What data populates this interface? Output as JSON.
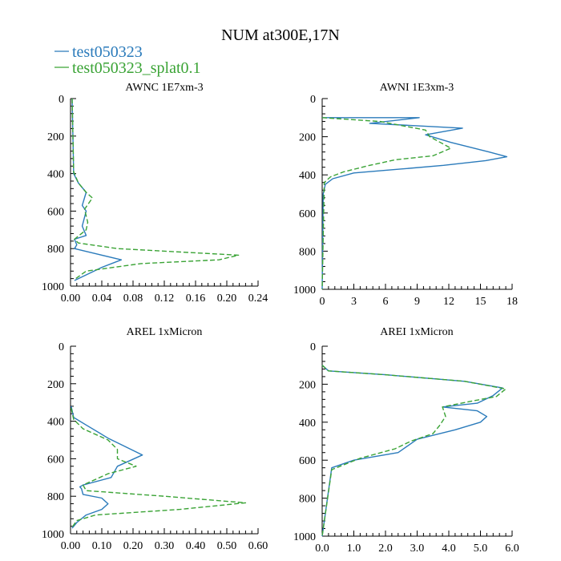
{
  "figure_title": "NUM at300E,17N",
  "colors": {
    "series1": "#2b7bbb",
    "series2": "#3aa335",
    "axis": "#000000"
  },
  "legend": [
    {
      "label": "test050323",
      "color": "#2b7bbb",
      "dash": "solid"
    },
    {
      "label": "test050323_splat0.1",
      "color": "#3aa335",
      "dash": "dashed"
    }
  ],
  "chart_data": [
    {
      "type": "line",
      "title": "AWNC  1E7xm-3",
      "xlim": [
        0,
        0.24
      ],
      "ylim": [
        1000,
        0
      ],
      "xticks": [
        "0.00",
        "0.04",
        "0.08",
        "0.12",
        "0.16",
        "0.20",
        "0.24"
      ],
      "xtick_values": [
        0,
        0.04,
        0.08,
        0.12,
        0.16,
        0.2,
        0.24
      ],
      "yticks": [
        "0",
        "200",
        "400",
        "600",
        "800",
        "1000"
      ],
      "ytick_values": [
        0,
        200,
        400,
        600,
        800,
        1000
      ],
      "series": [
        {
          "name": "test050323",
          "x": [
            0.002,
            0.004,
            0.01,
            0.02,
            0.015,
            0.02,
            0.015,
            0.02,
            0.005,
            0.008,
            0.005,
            0.035,
            0.065,
            0.04,
            0.02,
            0.005
          ],
          "y": [
            0,
            400,
            450,
            500,
            570,
            600,
            680,
            730,
            750,
            780,
            800,
            830,
            860,
            900,
            940,
            970
          ]
        },
        {
          "name": "test050323_splat0.1",
          "x": [
            0.002,
            0.004,
            0.01,
            0.02,
            0.028,
            0.018,
            0.022,
            0.02,
            0.005,
            0.01,
            0.06,
            0.215,
            0.19,
            0.09,
            0.02,
            0.005
          ],
          "y": [
            0,
            390,
            450,
            500,
            530,
            590,
            660,
            700,
            750,
            770,
            800,
            835,
            860,
            880,
            920,
            965
          ]
        }
      ]
    },
    {
      "type": "line",
      "title": "AWNI  1E3xm-3",
      "xlim": [
        0,
        18
      ],
      "ylim": [
        1000,
        0
      ],
      "xticks": [
        "0",
        "3",
        "6",
        "9",
        "12",
        "15",
        "18"
      ],
      "xtick_values": [
        0,
        3,
        6,
        9,
        12,
        15,
        18
      ],
      "yticks": [
        "0",
        "200",
        "400",
        "600",
        "800",
        "1000"
      ],
      "ytick_values": [
        0,
        200,
        400,
        600,
        800,
        1000
      ],
      "series": [
        {
          "name": "test050323",
          "x": [
            0,
            9.2,
            4.5,
            13.3,
            9.8,
            12.2,
            15.8,
            17.5,
            15.5,
            11.5,
            7.3,
            3.0,
            1.0,
            0.3,
            0.1,
            0.0
          ],
          "y": [
            100,
            100,
            130,
            155,
            190,
            230,
            280,
            305,
            325,
            350,
            370,
            390,
            420,
            450,
            500,
            1000
          ]
        },
        {
          "name": "test050323_splat0.1",
          "x": [
            0,
            5.5,
            9.8,
            10.2,
            12.2,
            10.5,
            7.0,
            4.5,
            2.0,
            0.8,
            0.2,
            0.0
          ],
          "y": [
            100,
            120,
            165,
            200,
            260,
            300,
            320,
            350,
            385,
            410,
            440,
            1000
          ]
        }
      ]
    },
    {
      "type": "line",
      "title": "AREL  1xMicron",
      "xlim": [
        0,
        0.6
      ],
      "ylim": [
        1000,
        0
      ],
      "xticks": [
        "0.00",
        "0.10",
        "0.20",
        "0.30",
        "0.40",
        "0.50",
        "0.60"
      ],
      "xtick_values": [
        0,
        0.1,
        0.2,
        0.3,
        0.4,
        0.5,
        0.6
      ],
      "yticks": [
        "0",
        "200",
        "400",
        "600",
        "800",
        "1000"
      ],
      "ytick_values": [
        0,
        200,
        400,
        600,
        800,
        1000
      ],
      "series": [
        {
          "name": "test050323",
          "x": [
            0.002,
            0.01,
            0.05,
            0.12,
            0.23,
            0.15,
            0.13,
            0.04,
            0.03,
            0.035,
            0.04,
            0.1,
            0.12,
            0.1,
            0.05,
            0.02,
            0.005
          ],
          "y": [
            320,
            380,
            420,
            490,
            580,
            640,
            700,
            740,
            750,
            760,
            790,
            810,
            840,
            870,
            900,
            940,
            970
          ]
        },
        {
          "name": "test050323_splat0.1",
          "x": [
            0.002,
            0.01,
            0.04,
            0.12,
            0.15,
            0.15,
            0.21,
            0.12,
            0.04,
            0.05,
            0.3,
            0.56,
            0.35,
            0.08,
            0.02,
            0.005
          ],
          "y": [
            330,
            390,
            440,
            500,
            550,
            600,
            640,
            680,
            740,
            770,
            800,
            835,
            870,
            900,
            930,
            965
          ]
        }
      ]
    },
    {
      "type": "line",
      "title": "AREI  1xMicron",
      "xlim": [
        0,
        6.0
      ],
      "ylim": [
        1000,
        0
      ],
      "xticks": [
        "0.0",
        "1.0",
        "2.0",
        "3.0",
        "4.0",
        "5.0",
        "6.0"
      ],
      "xtick_values": [
        0,
        1,
        2,
        3,
        4,
        5,
        6
      ],
      "yticks": [
        "0",
        "200",
        "400",
        "600",
        "800",
        "1000"
      ],
      "ytick_values": [
        0,
        200,
        400,
        600,
        800,
        1000
      ],
      "series": [
        {
          "name": "test050323",
          "x": [
            0,
            0.2,
            2.0,
            4.5,
            5.7,
            5.4,
            4.9,
            3.8,
            4.9,
            5.2,
            5.0,
            4.2,
            3.0,
            2.4,
            1.0,
            0.3,
            0.0
          ],
          "y": [
            100,
            130,
            150,
            185,
            220,
            260,
            300,
            320,
            340,
            370,
            400,
            440,
            490,
            560,
            600,
            640,
            1000
          ]
        },
        {
          "name": "test050323_splat0.1",
          "x": [
            0,
            0.2,
            2.0,
            4.5,
            5.8,
            5.5,
            4.7,
            3.8,
            3.9,
            3.7,
            3.5,
            2.8,
            2.3,
            1.2,
            0.3,
            0.0
          ],
          "y": [
            100,
            130,
            150,
            185,
            225,
            265,
            290,
            320,
            370,
            420,
            460,
            500,
            540,
            590,
            650,
            1000
          ]
        }
      ]
    }
  ]
}
